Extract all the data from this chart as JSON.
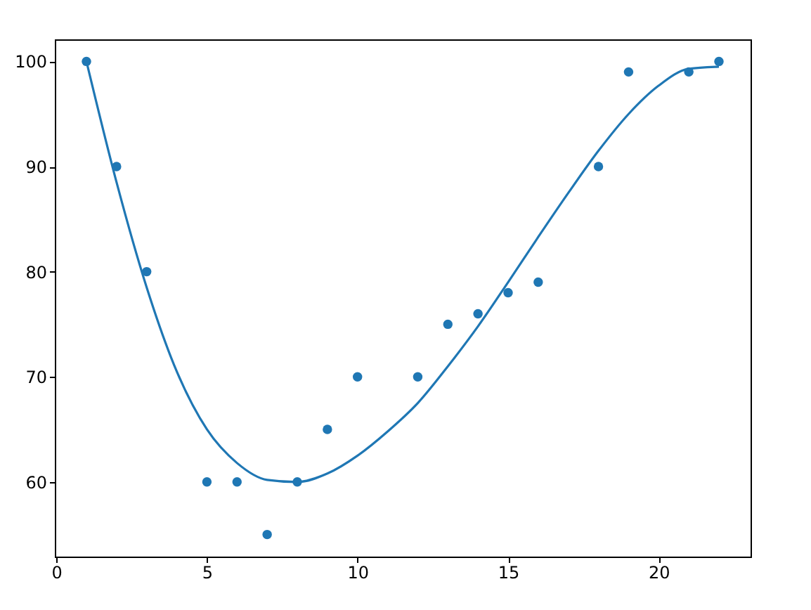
{
  "chart_data": {
    "type": "scatter",
    "xlim": [
      -0.05,
      23.05
    ],
    "ylim": [
      52.9,
      102.1
    ],
    "xticks": [
      0,
      5,
      10,
      15,
      20
    ],
    "yticks": [
      60,
      70,
      80,
      90,
      100
    ],
    "grid": false,
    "series": [
      {
        "marker": "circle",
        "color": "#1f77b4",
        "x": [
          1,
          2,
          3,
          5,
          6,
          7,
          8,
          9,
          10,
          12,
          13,
          14,
          15,
          16,
          18,
          19,
          21,
          22
        ],
        "values": [
          100,
          90,
          80,
          60,
          60,
          55,
          60,
          65,
          70,
          70,
          75,
          76,
          78,
          79,
          90,
          99,
          99,
          100
        ]
      },
      {
        "type": "line",
        "marker": "none",
        "color": "#1f77b4",
        "x": [
          1,
          2,
          3,
          4,
          5,
          6,
          7,
          8,
          9,
          10,
          11,
          12,
          13,
          14,
          15,
          16,
          17,
          18,
          19,
          20,
          21,
          22
        ],
        "values": [
          100,
          88.5,
          78.5,
          70.5,
          65,
          61.8,
          60.2,
          60,
          60.8,
          62.5,
          64.8,
          67.5,
          71,
          74.8,
          79,
          83.3,
          87.5,
          91.5,
          95,
          97.7,
          99.3,
          99.5
        ]
      }
    ]
  }
}
